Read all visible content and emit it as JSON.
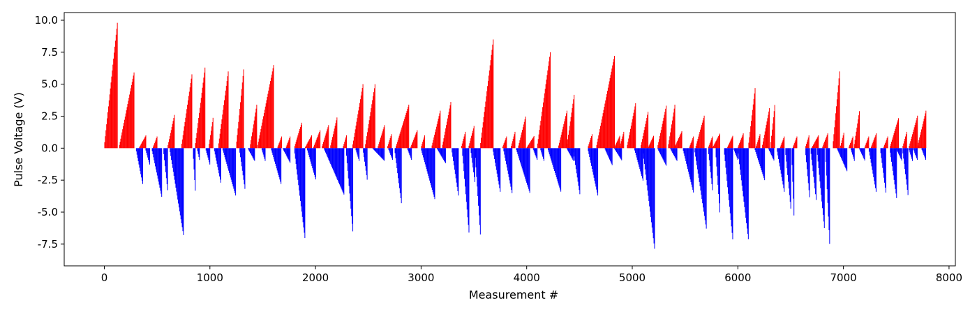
{
  "chart_data": {
    "type": "bar",
    "title": "",
    "xlabel": "Measurement #",
    "ylabel": "Pulse Voltage (V)",
    "xlim": [
      -380,
      8060
    ],
    "ylim": [
      -9.2,
      10.6
    ],
    "xticks": [
      0,
      1000,
      2000,
      3000,
      4000,
      5000,
      6000,
      7000,
      8000
    ],
    "yticks": [
      -7.5,
      -5.0,
      -2.5,
      0.0,
      2.5,
      5.0,
      7.5,
      10.0
    ],
    "colors": {
      "positive": "#ff0000",
      "negative": "#0000ff"
    },
    "grid": false,
    "legend": "none",
    "sweep_encoding": "each sweep: [start_measurement, end_measurement, peak_voltage]; voltage ramps linearly from 0 at start to peak at end",
    "positive_sweeps": [
      [
        0,
        120,
        9.8
      ],
      [
        140,
        280,
        6.0
      ],
      [
        330,
        390,
        1.0
      ],
      [
        460,
        500,
        1.0
      ],
      [
        600,
        660,
        2.6
      ],
      [
        730,
        830,
        6.0
      ],
      [
        860,
        950,
        6.3
      ],
      [
        990,
        1030,
        2.6
      ],
      [
        1080,
        1170,
        6.0
      ],
      [
        1250,
        1320,
        6.5
      ],
      [
        1380,
        1440,
        3.4
      ],
      [
        1450,
        1600,
        6.5
      ],
      [
        1640,
        1680,
        1.0
      ],
      [
        1720,
        1760,
        1.0
      ],
      [
        1800,
        1870,
        2.1
      ],
      [
        1900,
        1960,
        1.0
      ],
      [
        1980,
        2040,
        1.4
      ],
      [
        2060,
        2120,
        1.8
      ],
      [
        2140,
        2200,
        2.4
      ],
      [
        2260,
        2290,
        1.0
      ],
      [
        2350,
        2450,
        5.2
      ],
      [
        2470,
        2560,
        5.0
      ],
      [
        2590,
        2650,
        1.8
      ],
      [
        2680,
        2720,
        1.2
      ],
      [
        2760,
        2880,
        3.4
      ],
      [
        2900,
        2960,
        1.4
      ],
      [
        3000,
        3030,
        1.0
      ],
      [
        3100,
        3180,
        3.0
      ],
      [
        3200,
        3280,
        3.7
      ],
      [
        3380,
        3420,
        1.4
      ],
      [
        3450,
        3500,
        1.8
      ],
      [
        3560,
        3680,
        8.5
      ],
      [
        3770,
        3810,
        1.0
      ],
      [
        3850,
        3890,
        1.4
      ],
      [
        3920,
        3990,
        2.6
      ],
      [
        4000,
        4070,
        1.0
      ],
      [
        4100,
        4220,
        7.5
      ],
      [
        4300,
        4380,
        3.0
      ],
      [
        4380,
        4450,
        4.4
      ],
      [
        4580,
        4620,
        1.2
      ],
      [
        4660,
        4830,
        7.3
      ],
      [
        4830,
        4880,
        1.0
      ],
      [
        4880,
        4920,
        1.4
      ],
      [
        4950,
        5030,
        3.6
      ],
      [
        5080,
        5150,
        3.0
      ],
      [
        5150,
        5200,
        1.0
      ],
      [
        5240,
        5320,
        3.4
      ],
      [
        5340,
        5400,
        3.4
      ],
      [
        5400,
        5470,
        1.4
      ],
      [
        5540,
        5580,
        1.0
      ],
      [
        5600,
        5680,
        2.6
      ],
      [
        5720,
        5760,
        1.0
      ],
      [
        5760,
        5830,
        1.2
      ],
      [
        5900,
        5950,
        1.0
      ],
      [
        6000,
        6050,
        1.2
      ],
      [
        6100,
        6160,
        4.7
      ],
      [
        6170,
        6210,
        1.2
      ],
      [
        6230,
        6300,
        3.3
      ],
      [
        6310,
        6350,
        3.7
      ],
      [
        6400,
        6440,
        1.0
      ],
      [
        6520,
        6560,
        1.0
      ],
      [
        6640,
        6670,
        1.0
      ],
      [
        6700,
        6760,
        1.0
      ],
      [
        6800,
        6850,
        1.2
      ],
      [
        6900,
        6960,
        6.0
      ],
      [
        6970,
        7000,
        1.2
      ],
      [
        7050,
        7090,
        1.0
      ],
      [
        7100,
        7150,
        3.0
      ],
      [
        7200,
        7240,
        1.0
      ],
      [
        7260,
        7310,
        1.2
      ],
      [
        7380,
        7420,
        1.0
      ],
      [
        7440,
        7520,
        2.4
      ],
      [
        7560,
        7600,
        1.4
      ],
      [
        7620,
        7700,
        2.6
      ],
      [
        7700,
        7780,
        3.0
      ]
    ],
    "negative_sweeps": [
      [
        300,
        360,
        -2.8
      ],
      [
        390,
        430,
        -1.4
      ],
      [
        450,
        540,
        -3.8
      ],
      [
        560,
        600,
        -3.6
      ],
      [
        620,
        750,
        -7.0
      ],
      [
        840,
        860,
        -3.6
      ],
      [
        880,
        900,
        -1.0
      ],
      [
        960,
        1000,
        -1.4
      ],
      [
        1040,
        1100,
        -2.7
      ],
      [
        1120,
        1240,
        -3.7
      ],
      [
        1280,
        1330,
        -3.3
      ],
      [
        1360,
        1420,
        -1.0
      ],
      [
        1490,
        1520,
        -1.0
      ],
      [
        1580,
        1670,
        -2.8
      ],
      [
        1690,
        1760,
        -1.2
      ],
      [
        1800,
        1900,
        -7.3
      ],
      [
        1920,
        2000,
        -2.5
      ],
      [
        2080,
        2270,
        -3.7
      ],
      [
        2290,
        2350,
        -6.5
      ],
      [
        2380,
        2410,
        -1.0
      ],
      [
        2450,
        2490,
        -2.7
      ],
      [
        2540,
        2650,
        -1.0
      ],
      [
        2690,
        2730,
        -1.0
      ],
      [
        2750,
        2810,
        -4.3
      ],
      [
        2870,
        2910,
        -1.0
      ],
      [
        3000,
        3130,
        -4.1
      ],
      [
        3150,
        3230,
        -1.2
      ],
      [
        3290,
        3350,
        -3.7
      ],
      [
        3390,
        3450,
        -6.6
      ],
      [
        3470,
        3510,
        -2.9
      ],
      [
        3510,
        3560,
        -7.0
      ],
      [
        3680,
        3750,
        -3.6
      ],
      [
        3780,
        3860,
        -3.6
      ],
      [
        3900,
        4030,
        -3.6
      ],
      [
        4060,
        4100,
        -1.0
      ],
      [
        4130,
        4160,
        -1.0
      ],
      [
        4200,
        4320,
        -3.4
      ],
      [
        4380,
        4440,
        -1.0
      ],
      [
        4440,
        4500,
        -3.6
      ],
      [
        4580,
        4670,
        -3.7
      ],
      [
        4740,
        4810,
        -1.4
      ],
      [
        4830,
        4900,
        -1.0
      ],
      [
        5020,
        5100,
        -2.6
      ],
      [
        5100,
        5210,
        -8.0
      ],
      [
        5240,
        5320,
        -1.4
      ],
      [
        5360,
        5420,
        -1.0
      ],
      [
        5480,
        5580,
        -3.6
      ],
      [
        5590,
        5700,
        -6.4
      ],
      [
        5720,
        5760,
        -3.6
      ],
      [
        5790,
        5830,
        -5.5
      ],
      [
        5870,
        5950,
        -7.3
      ],
      [
        5960,
        6000,
        -1.0
      ],
      [
        6000,
        6100,
        -7.4
      ],
      [
        6160,
        6250,
        -2.5
      ],
      [
        6290,
        6340,
        -1.0
      ],
      [
        6370,
        6440,
        -3.6
      ],
      [
        6450,
        6500,
        -4.9
      ],
      [
        6510,
        6530,
        -5.7
      ],
      [
        6640,
        6680,
        -4.2
      ],
      [
        6690,
        6740,
        -4.2
      ],
      [
        6750,
        6820,
        -6.6
      ],
      [
        6830,
        6870,
        -8.2
      ],
      [
        6940,
        7030,
        -1.8
      ],
      [
        7070,
        7100,
        -1.0
      ],
      [
        7150,
        7200,
        -1.0
      ],
      [
        7240,
        7310,
        -3.6
      ],
      [
        7350,
        7400,
        -3.6
      ],
      [
        7440,
        7500,
        -3.9
      ],
      [
        7500,
        7550,
        -1.0
      ],
      [
        7560,
        7610,
        -3.8
      ],
      [
        7620,
        7650,
        -1.0
      ],
      [
        7660,
        7700,
        -1.0
      ],
      [
        7740,
        7780,
        -1.0
      ]
    ],
    "sample_step": 6
  }
}
